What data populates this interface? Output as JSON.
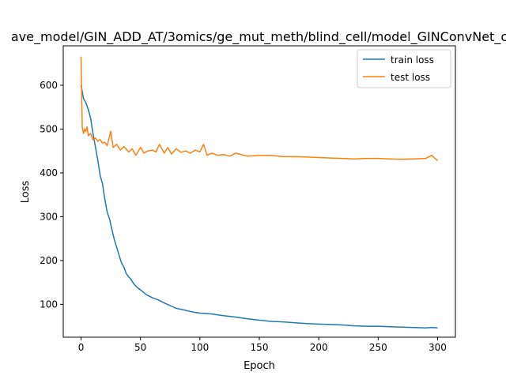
{
  "chart_data": {
    "type": "line",
    "title": "ave_model/GIN_ADD_AT/3omics/ge_mut_meth/blind_cell/model_GINConvNet_c",
    "xlabel": "Epoch",
    "ylabel": "Loss",
    "xlim": [
      -15,
      315
    ],
    "ylim": [
      25,
      690
    ],
    "xticks": [
      0,
      50,
      100,
      150,
      200,
      250,
      300
    ],
    "yticks": [
      100,
      200,
      300,
      400,
      500,
      600
    ],
    "grid": false,
    "legend_position": "top-right",
    "series": [
      {
        "name": "train loss",
        "color": "#1f77b4",
        "x": [
          0,
          2,
          4,
          6,
          8,
          10,
          12,
          14,
          16,
          18,
          20,
          22,
          24,
          26,
          28,
          30,
          32,
          34,
          36,
          38,
          40,
          42,
          44,
          46,
          48,
          50,
          55,
          60,
          65,
          70,
          75,
          80,
          85,
          90,
          95,
          100,
          105,
          110,
          115,
          120,
          130,
          140,
          150,
          160,
          170,
          180,
          190,
          200,
          210,
          220,
          230,
          240,
          250,
          260,
          270,
          280,
          290,
          295,
          300
        ],
        "values": [
          600,
          570,
          560,
          545,
          525,
          490,
          460,
          430,
          395,
          375,
          340,
          310,
          295,
          270,
          248,
          230,
          212,
          195,
          185,
          170,
          163,
          157,
          148,
          142,
          137,
          133,
          122,
          115,
          110,
          103,
          97,
          91,
          88,
          85,
          82,
          80,
          79,
          78,
          76,
          74,
          71,
          67,
          64,
          61,
          60,
          58,
          56,
          55,
          54,
          53,
          51,
          50,
          50,
          49,
          48,
          47,
          46,
          47,
          46
        ]
      },
      {
        "name": "test loss",
        "color": "#ff7f0e",
        "x": [
          0,
          1,
          2,
          3,
          4,
          5,
          6,
          8,
          10,
          12,
          14,
          16,
          18,
          20,
          22,
          25,
          27,
          30,
          33,
          36,
          40,
          43,
          46,
          50,
          53,
          56,
          60,
          63,
          66,
          70,
          73,
          76,
          80,
          84,
          88,
          92,
          96,
          100,
          103,
          106,
          110,
          115,
          120,
          125,
          130,
          140,
          150,
          160,
          170,
          180,
          190,
          200,
          210,
          220,
          230,
          240,
          250,
          260,
          270,
          280,
          290,
          295,
          300
        ],
        "values": [
          665,
          505,
          490,
          500,
          495,
          505,
          485,
          490,
          475,
          480,
          472,
          476,
          468,
          470,
          462,
          495,
          458,
          465,
          452,
          460,
          448,
          455,
          440,
          458,
          445,
          450,
          452,
          448,
          465,
          445,
          458,
          443,
          455,
          447,
          450,
          445,
          452,
          448,
          465,
          440,
          445,
          440,
          442,
          438,
          445,
          438,
          440,
          440,
          437,
          437,
          436,
          435,
          434,
          433,
          432,
          433,
          433,
          432,
          431,
          432,
          433,
          440,
          428
        ]
      }
    ]
  }
}
